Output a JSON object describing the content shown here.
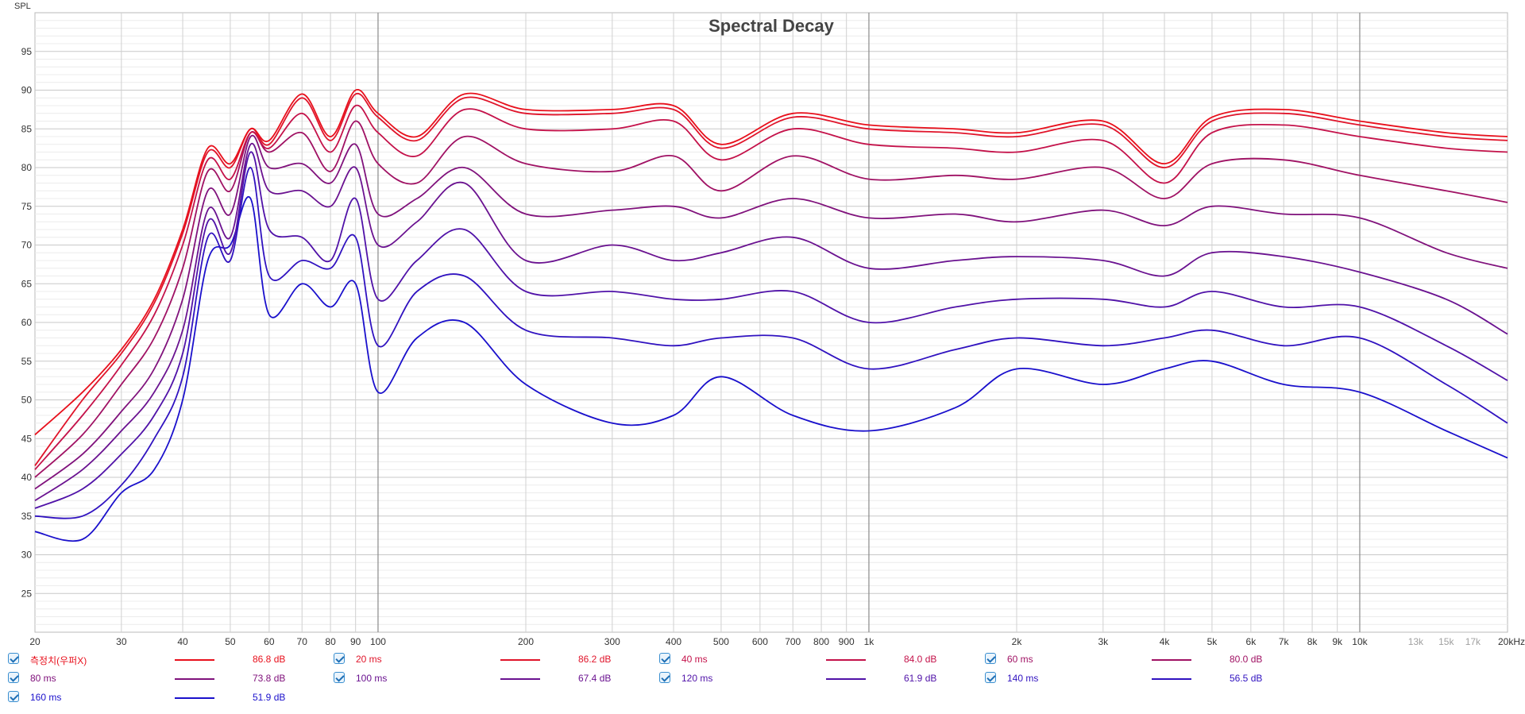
{
  "chart_data": {
    "type": "line",
    "title": "Spectral Decay",
    "ylabel": "SPL",
    "xscale": "log",
    "xlim": [
      20,
      20000
    ],
    "ylim": [
      20,
      100
    ],
    "yticks": [
      25,
      30,
      35,
      40,
      45,
      50,
      55,
      60,
      65,
      70,
      75,
      80,
      85,
      90,
      95
    ],
    "xticks": [
      {
        "v": 20,
        "label": "20",
        "style": "dark"
      },
      {
        "v": 30,
        "label": "30",
        "style": "dark"
      },
      {
        "v": 40,
        "label": "40",
        "style": "dark"
      },
      {
        "v": 50,
        "label": "50",
        "style": "dark"
      },
      {
        "v": 60,
        "label": "60",
        "style": "dark"
      },
      {
        "v": 70,
        "label": "70",
        "style": "dark"
      },
      {
        "v": 80,
        "label": "80",
        "style": "dark"
      },
      {
        "v": 90,
        "label": "90",
        "style": "dark"
      },
      {
        "v": 100,
        "label": "100",
        "style": "dark"
      },
      {
        "v": 200,
        "label": "200",
        "style": "dark"
      },
      {
        "v": 300,
        "label": "300",
        "style": "dark"
      },
      {
        "v": 400,
        "label": "400",
        "style": "dark"
      },
      {
        "v": 500,
        "label": "500",
        "style": "dark"
      },
      {
        "v": 600,
        "label": "600",
        "style": "dark"
      },
      {
        "v": 700,
        "label": "700",
        "style": "dark"
      },
      {
        "v": 800,
        "label": "800",
        "style": "dark"
      },
      {
        "v": 900,
        "label": "900",
        "style": "dark"
      },
      {
        "v": 1000,
        "label": "1k",
        "style": "dark"
      },
      {
        "v": 2000,
        "label": "2k",
        "style": "dark"
      },
      {
        "v": 3000,
        "label": "3k",
        "style": "dark"
      },
      {
        "v": 4000,
        "label": "4k",
        "style": "dark"
      },
      {
        "v": 5000,
        "label": "5k",
        "style": "dark"
      },
      {
        "v": 6000,
        "label": "6k",
        "style": "dark"
      },
      {
        "v": 7000,
        "label": "7k",
        "style": "dark"
      },
      {
        "v": 8000,
        "label": "8k",
        "style": "dark"
      },
      {
        "v": 9000,
        "label": "9k",
        "style": "dark"
      },
      {
        "v": 10000,
        "label": "10k",
        "style": "dark"
      },
      {
        "v": 13000,
        "label": "13k",
        "style": "light"
      },
      {
        "v": 15000,
        "label": "15k",
        "style": "light"
      },
      {
        "v": 17000,
        "label": "17k",
        "style": "light"
      },
      {
        "v": 20000,
        "label": "20kHz",
        "style": "dark"
      }
    ],
    "grid": true,
    "legend_position": "bottom",
    "x": [
      20,
      25,
      30,
      35,
      40,
      45,
      50,
      55,
      60,
      70,
      80,
      90,
      100,
      120,
      150,
      200,
      300,
      400,
      500,
      700,
      1000,
      1500,
      2000,
      3000,
      4000,
      5000,
      7000,
      10000,
      15000,
      20000
    ],
    "series": [
      {
        "name": "측정치(우퍼X)",
        "value_label": "86.8 dB",
        "color": "#e8101c",
        "values": [
          45.5,
          51,
          56.5,
          63,
          72,
          82.5,
          80.5,
          85,
          83.5,
          89.5,
          84,
          90,
          87,
          84,
          89.5,
          87.5,
          87.5,
          88,
          83,
          87,
          85.5,
          85,
          84.5,
          86,
          80.5,
          86.5,
          87.5,
          86,
          84.5,
          84
        ]
      },
      {
        "name": "20 ms",
        "value_label": "86.2 dB",
        "color": "#e0142a",
        "values": [
          41.5,
          50,
          56,
          62.5,
          71.5,
          82,
          80,
          85,
          83,
          89,
          83.5,
          89.5,
          86.5,
          83.5,
          89,
          87,
          87,
          87.5,
          82.5,
          86.5,
          85,
          84.5,
          84,
          85.5,
          80,
          86,
          87,
          85.5,
          84,
          83.5
        ]
      },
      {
        "name": "40 ms",
        "value_label": "84.0 dB",
        "color": "#c4124a",
        "values": [
          41,
          48,
          54.5,
          61,
          70,
          81,
          78.5,
          84.5,
          82.5,
          87,
          82,
          88,
          84.5,
          81.5,
          87.5,
          85,
          85,
          86,
          81,
          85,
          83,
          82.5,
          82,
          83.5,
          78,
          84.5,
          85.5,
          84,
          82.5,
          82
        ]
      },
      {
        "name": "60 ms",
        "value_label": "80.0 dB",
        "color": "#a01264",
        "values": [
          40,
          45.5,
          52,
          58,
          67,
          79.5,
          77,
          84.5,
          82,
          84.5,
          79.5,
          86,
          80.5,
          78,
          84,
          80.5,
          79.5,
          81.5,
          77,
          81.5,
          78.5,
          79,
          78.5,
          80,
          76,
          80.5,
          81,
          79,
          77,
          75.5
        ]
      },
      {
        "name": "80 ms",
        "value_label": "73.8 dB",
        "color": "#80127c",
        "values": [
          38.5,
          43,
          48.5,
          54,
          63,
          77,
          74,
          84,
          80,
          80.5,
          78,
          83,
          74,
          76,
          80,
          74,
          74.5,
          75,
          73.5,
          76,
          73.5,
          74,
          73,
          74.5,
          72.5,
          75,
          74,
          73.5,
          69,
          67
        ]
      },
      {
        "name": "100 ms",
        "value_label": "67.4 dB",
        "color": "#6a1290",
        "values": [
          37,
          41,
          46,
          51,
          59,
          74.5,
          71,
          83,
          77,
          77,
          75,
          80,
          70,
          73,
          78,
          68,
          70,
          68,
          69,
          71,
          67,
          68,
          68.5,
          68,
          66,
          69,
          68.5,
          66.5,
          63,
          58.5
        ]
      },
      {
        "name": "120 ms",
        "value_label": "61.9 dB",
        "color": "#5012a8",
        "values": [
          36,
          38.5,
          43,
          48,
          56,
          73,
          69,
          82,
          72,
          71,
          68,
          76,
          63,
          68,
          72,
          64,
          64,
          63,
          63,
          64,
          60,
          62,
          63,
          63,
          62,
          64,
          62,
          62,
          57,
          52.5
        ]
      },
      {
        "name": "140 ms",
        "value_label": "56.5 dB",
        "color": "#3012c0",
        "values": [
          35,
          35,
          39,
          45,
          53,
          71,
          68,
          80,
          66,
          68,
          67,
          71,
          57,
          64,
          66,
          59,
          58,
          57,
          58,
          58,
          54,
          56.5,
          58,
          57,
          58,
          59,
          57,
          58,
          52,
          47
        ]
      },
      {
        "name": "160 ms",
        "value_label": "51.9 dB",
        "color": "#1a10cc",
        "values": [
          33,
          32,
          38,
          41,
          50,
          68,
          70,
          76,
          61,
          65,
          62,
          65,
          51,
          58,
          60,
          52,
          47,
          48,
          53,
          48,
          46,
          49,
          54,
          52,
          54,
          55,
          52,
          51,
          46,
          42.5
        ]
      }
    ]
  }
}
